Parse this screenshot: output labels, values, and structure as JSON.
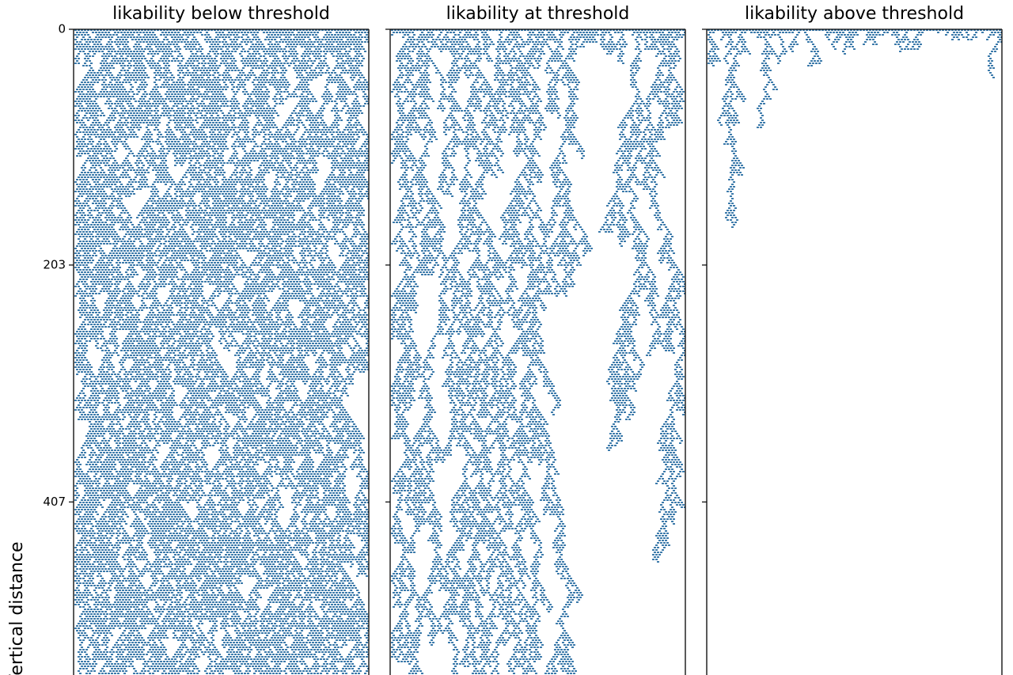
{
  "chart_data": [
    {
      "type": "grid",
      "title": "likability below threshold",
      "ylabel": "Vertical distance",
      "ylim": [
        0,
        556
      ],
      "yticks": [
        0,
        203,
        407
      ],
      "color": "#3d7bab"
    },
    {
      "type": "grid",
      "title": "likability at threshold",
      "ylim": [
        0,
        556
      ],
      "yticks": [
        0,
        203,
        407
      ],
      "color": "#3d7bab"
    },
    {
      "type": "grid",
      "title": "likability above threshold",
      "ylim": [
        0,
        556
      ],
      "yticks": [
        0,
        203,
        407
      ],
      "color": "#3d7bab"
    }
  ]
}
